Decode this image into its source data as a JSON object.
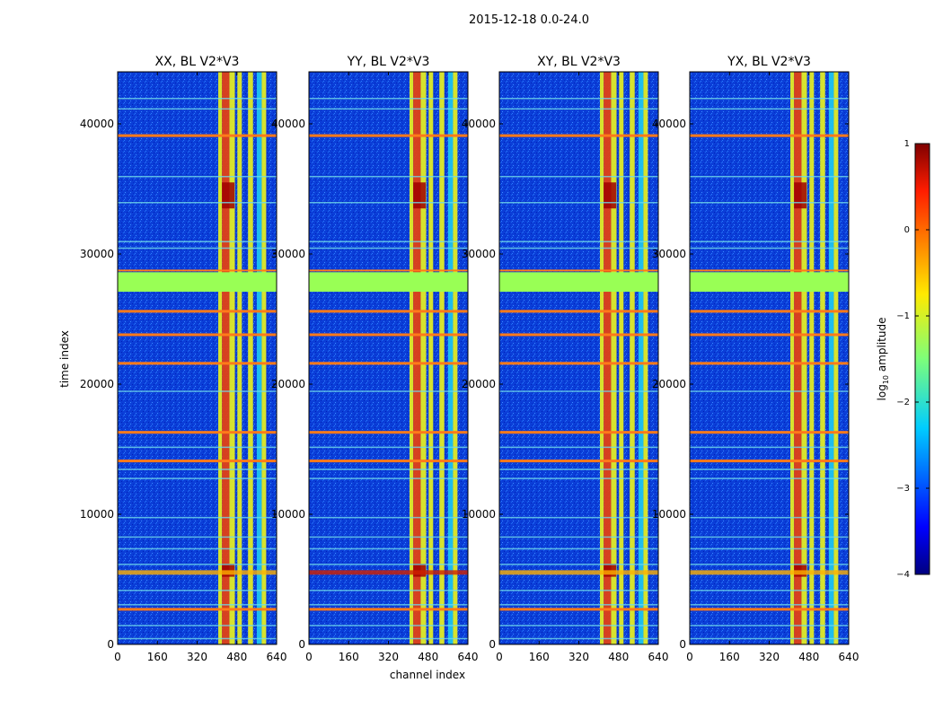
{
  "suptitle": "2015-12-18 0.0-24.0",
  "xlabel": "channel index",
  "ylabel": "time index",
  "colorbar_label": "log",
  "colorbar_label_sub": "10",
  "colorbar_label_rest": " amplitude",
  "colorbar_ticks": [
    "1",
    "0",
    "−1",
    "−2",
    "−3",
    "−4"
  ],
  "chart_data": [
    {
      "type": "heatmap",
      "title": "XX, BL V2*V3",
      "xlabel": "channel index",
      "ylabel": "time index",
      "xlim": [
        0,
        640
      ],
      "ylim": [
        0,
        44000
      ],
      "x_ticks": [
        "0",
        "160",
        "320",
        "480",
        "640"
      ],
      "y_ticks": [
        "0",
        "10000",
        "20000",
        "30000",
        "40000"
      ],
      "colorbar": {
        "label": "log10 amplitude",
        "range": [
          -4,
          1
        ]
      }
    },
    {
      "type": "heatmap",
      "title": "YY, BL V2*V3",
      "xlim": [
        0,
        640
      ],
      "ylim": [
        0,
        44000
      ],
      "x_ticks": [
        "0",
        "160",
        "320",
        "480",
        "640"
      ],
      "y_ticks": [
        "0",
        "10000",
        "20000",
        "30000",
        "40000"
      ]
    },
    {
      "type": "heatmap",
      "title": "XY, BL V2*V3",
      "xlim": [
        0,
        640
      ],
      "ylim": [
        0,
        44000
      ],
      "x_ticks": [
        "0",
        "160",
        "320",
        "480",
        "640"
      ],
      "y_ticks": [
        "0",
        "10000",
        "20000",
        "30000",
        "40000"
      ]
    },
    {
      "type": "heatmap",
      "title": "YX, BL V2*V3",
      "xlim": [
        0,
        640
      ],
      "ylim": [
        0,
        44000
      ],
      "x_ticks": [
        "0",
        "160",
        "320",
        "480",
        "640"
      ],
      "y_ticks": [
        "0",
        "10000",
        "20000",
        "30000",
        "40000"
      ]
    }
  ],
  "colors": {
    "background": "#0a3bd8",
    "band_yellow": "#e8f020",
    "band_red": "#e84010",
    "band_cyan": "#20c8f0",
    "flag_green": "#99ff55",
    "flag_orange": "#ff7a1a"
  }
}
